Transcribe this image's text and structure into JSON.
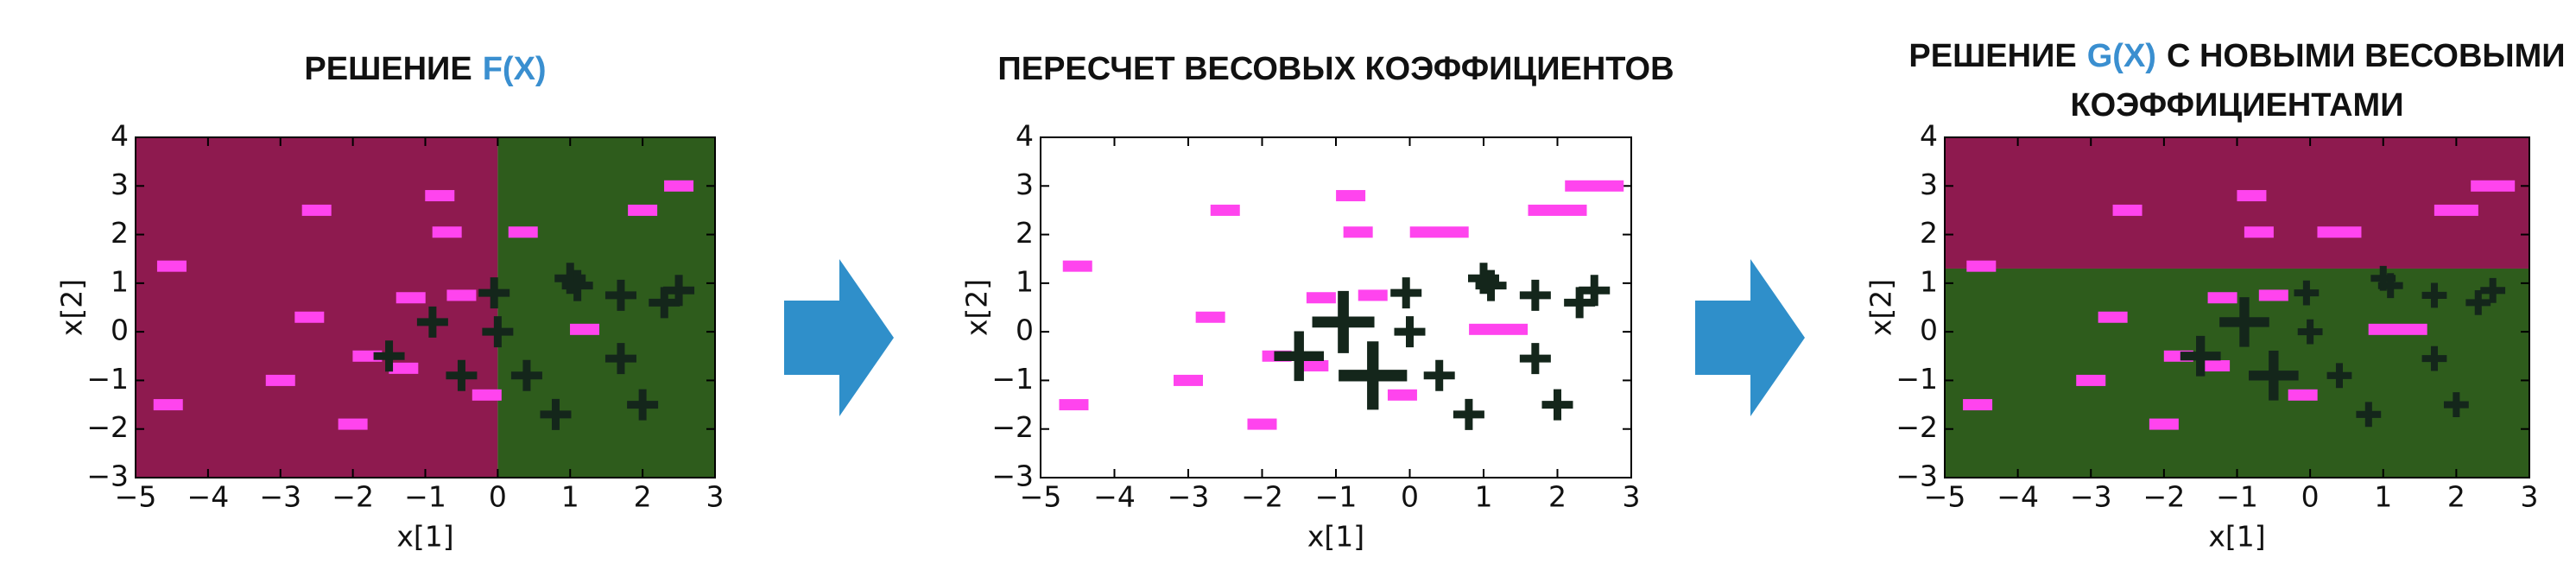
{
  "chart_data": [
    {
      "type": "scatter",
      "title": [
        [
          {
            "text": "РЕШЕНИЕ",
            "color": "#111111"
          },
          {
            "text": "F(X)",
            "color": "#3a8fd0"
          }
        ]
      ],
      "x_label": "x[1]",
      "y_label": "x[2]",
      "xlim": [
        -5,
        3
      ],
      "ylim": [
        -3,
        4
      ],
      "xticks": [
        {
          "value": -5,
          "label": "−5"
        },
        {
          "value": -4,
          "label": "−4"
        },
        {
          "value": -3,
          "label": "−3"
        },
        {
          "value": -2,
          "label": "−2"
        },
        {
          "value": -1,
          "label": "−1"
        },
        0,
        1,
        2,
        3
      ],
      "yticks": [
        {
          "value": -3,
          "label": "−3"
        },
        {
          "value": -2,
          "label": "−2"
        },
        {
          "value": -1,
          "label": "−1"
        },
        0,
        1,
        2,
        3,
        4
      ],
      "regions": [
        {
          "color": "#8e1a4f",
          "xlim": [
            -5,
            0
          ],
          "ylim": [
            -3,
            4
          ]
        },
        {
          "color": "#2e5c1c",
          "xlim": [
            0,
            3
          ],
          "ylim": [
            -3,
            4
          ]
        }
      ],
      "series": [
        {
          "marker": "minus",
          "color": "#ff44ee",
          "x": [
            -4.5,
            -4.55,
            -2.5,
            -2.6,
            -3.0,
            -2.0,
            -1.8,
            -1.3,
            -1.2,
            -0.8,
            -0.7,
            -0.5,
            -0.15,
            0.35,
            1.2,
            2.0,
            2.5
          ],
          "y": [
            1.35,
            -1.5,
            2.5,
            0.3,
            -1.0,
            -1.9,
            -0.5,
            -0.75,
            0.7,
            2.8,
            2.05,
            0.75,
            -1.3,
            2.05,
            0.05,
            2.5,
            3.0
          ]
        },
        {
          "marker": "plus",
          "color": "#14261b",
          "x": [
            -1.5,
            -0.9,
            -0.5,
            -0.05,
            0.0,
            0.4,
            0.8,
            1.0,
            1.1,
            1.7,
            1.7,
            2.0,
            2.3,
            2.5
          ],
          "y": [
            -0.5,
            0.2,
            -0.9,
            0.8,
            0.0,
            -0.9,
            -1.7,
            1.1,
            0.95,
            0.75,
            -0.55,
            -1.5,
            0.6,
            0.85
          ]
        }
      ]
    },
    {
      "type": "scatter",
      "title": [
        [
          {
            "text": "ПЕРЕСЧЕТ ВЕСОВЫХ КОЭФФИЦИЕНТОВ",
            "color": "#111111"
          }
        ]
      ],
      "x_label": "x[1]",
      "y_label": "x[2]",
      "xlim": [
        -5,
        3
      ],
      "ylim": [
        -3,
        4
      ],
      "xticks": [
        {
          "value": -5,
          "label": "−5"
        },
        {
          "value": -4,
          "label": "−4"
        },
        {
          "value": -3,
          "label": "−3"
        },
        {
          "value": -2,
          "label": "−2"
        },
        {
          "value": -1,
          "label": "−1"
        },
        0,
        1,
        2,
        3
      ],
      "yticks": [
        {
          "value": -3,
          "label": "−3"
        },
        {
          "value": -2,
          "label": "−2"
        },
        {
          "value": -1,
          "label": "−1"
        },
        0,
        1,
        2,
        3,
        4
      ],
      "series": [
        {
          "marker": "minus",
          "color": "#ff44ee",
          "x": [
            -4.5,
            -4.55,
            -2.5,
            -2.7,
            -3.0,
            -2.0,
            -1.8,
            -1.3,
            -1.2,
            -0.8,
            -0.7,
            -0.5,
            -0.1,
            0.4,
            1.2,
            2.0,
            2.5
          ],
          "y": [
            1.35,
            -1.5,
            2.5,
            0.3,
            -1.0,
            -1.9,
            -0.5,
            -0.7,
            0.7,
            2.8,
            2.05,
            0.75,
            -1.3,
            2.05,
            0.05,
            2.5,
            3.0
          ],
          "sizes": [
            1,
            1,
            1,
            1,
            1,
            1,
            1,
            1,
            1,
            1,
            1,
            1,
            1,
            2,
            2,
            2,
            2
          ]
        },
        {
          "marker": "plus",
          "color": "#14261b",
          "x": [
            -1.5,
            -0.9,
            -0.5,
            -0.05,
            0.0,
            0.4,
            0.8,
            1.0,
            1.1,
            1.7,
            1.7,
            2.0,
            2.3,
            2.5
          ],
          "y": [
            -0.5,
            0.2,
            -0.9,
            0.8,
            0.0,
            -0.9,
            -1.7,
            1.1,
            0.95,
            0.75,
            -0.55,
            -1.5,
            0.6,
            0.85
          ],
          "sizes": [
            1.6,
            2,
            2.2,
            1,
            1,
            1,
            1,
            1,
            1,
            1,
            1,
            1,
            1,
            1
          ]
        }
      ]
    },
    {
      "type": "scatter",
      "title": [
        [
          {
            "text": "РЕШЕНИЕ",
            "color": "#111111"
          },
          {
            "text": "G(X)",
            "color": "#3a8fd0"
          },
          {
            "text": "С НОВЫМИ ВЕСОВЫМИ",
            "color": "#111111"
          }
        ],
        [
          {
            "text": "КОЭФФИЦИЕНТАМИ",
            "color": "#111111"
          }
        ]
      ],
      "x_label": "x[1]",
      "y_label": "x[2]",
      "xlim": [
        -5,
        3
      ],
      "ylim": [
        -3,
        4
      ],
      "xticks": [
        {
          "value": -5,
          "label": "−5"
        },
        {
          "value": -4,
          "label": "−4"
        },
        {
          "value": -3,
          "label": "−3"
        },
        {
          "value": -2,
          "label": "−2"
        },
        {
          "value": -1,
          "label": "−1"
        },
        0,
        1,
        2,
        3
      ],
      "yticks": [
        {
          "value": -3,
          "label": "−3"
        },
        {
          "value": -2,
          "label": "−2"
        },
        {
          "value": -1,
          "label": "−1"
        },
        0,
        1,
        2,
        3,
        4
      ],
      "regions": [
        {
          "color": "#8e1a4f",
          "xlim": [
            -5,
            3
          ],
          "ylim": [
            1.3,
            4
          ]
        },
        {
          "color": "#2e5c1c",
          "xlim": [
            -5,
            3
          ],
          "ylim": [
            -3,
            1.3
          ]
        }
      ],
      "series": [
        {
          "marker": "minus",
          "color": "#ff44ee",
          "x": [
            -4.5,
            -4.55,
            -2.5,
            -2.7,
            -3.0,
            -2.0,
            -1.8,
            -1.3,
            -1.2,
            -0.8,
            -0.7,
            -0.5,
            -0.1,
            0.4,
            1.2,
            2.0,
            2.5
          ],
          "y": [
            1.35,
            -1.5,
            2.5,
            0.3,
            -1.0,
            -1.9,
            -0.5,
            -0.7,
            0.7,
            2.8,
            2.05,
            0.75,
            -1.3,
            2.05,
            0.05,
            2.5,
            3.0
          ],
          "sizes": [
            1,
            1,
            1,
            1,
            1,
            1,
            1,
            1,
            1,
            1,
            1,
            1,
            1,
            1.5,
            2,
            1.5,
            1.5
          ]
        },
        {
          "marker": "plus",
          "color": "#14261b",
          "x": [
            -1.5,
            -0.9,
            -0.5,
            -0.05,
            0.0,
            0.4,
            0.8,
            1.0,
            1.1,
            1.7,
            1.7,
            2.0,
            2.3,
            2.5
          ],
          "y": [
            -0.5,
            0.2,
            -0.9,
            0.8,
            0.0,
            -0.9,
            -1.7,
            1.1,
            0.95,
            0.75,
            -0.55,
            -1.5,
            0.6,
            0.85
          ],
          "sizes": [
            1.3,
            1.6,
            1.6,
            0.8,
            0.8,
            0.8,
            0.8,
            0.8,
            0.8,
            0.8,
            0.8,
            0.8,
            0.8,
            0.8
          ]
        }
      ]
    }
  ]
}
